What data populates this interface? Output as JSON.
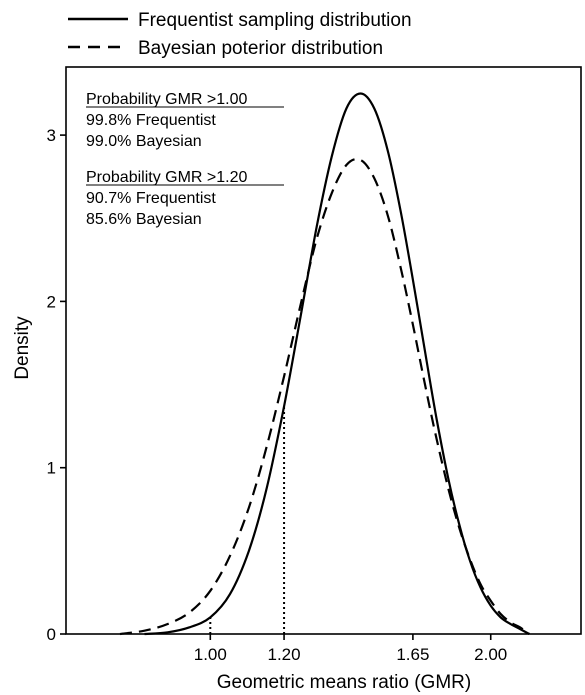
{
  "legend": {
    "items": [
      {
        "label": "Frequentist sampling distribution",
        "dash": "solid"
      },
      {
        "label": "Bayesian poterior distribution",
        "dash": "dashed"
      }
    ]
  },
  "annotations": [
    {
      "heading": "Probability GMR >1.00",
      "lines": [
        "99.8% Frequentist",
        "99.0% Bayesian"
      ]
    },
    {
      "heading": "Probability GMR >1.20",
      "lines": [
        "90.7% Frequentist",
        "85.6% Bayesian"
      ]
    }
  ],
  "chart_data": {
    "type": "line",
    "xlabel": "Geometric means ratio (GMR)",
    "ylabel": "Density",
    "x_scale": "log",
    "xlim": [
      0.7,
      2.5
    ],
    "ylim": [
      0,
      3.3
    ],
    "x_ticks": [
      {
        "value": 1.0,
        "label": "1.00"
      },
      {
        "value": 1.2,
        "label": "1.20"
      },
      {
        "value": 1.65,
        "label": "1.65"
      },
      {
        "value": 2.0,
        "label": "2.00"
      }
    ],
    "y_ticks": [
      {
        "value": 0,
        "label": "0"
      },
      {
        "value": 1,
        "label": "1"
      },
      {
        "value": 2,
        "label": "2"
      },
      {
        "value": 3,
        "label": "3"
      }
    ],
    "reference_lines": [
      {
        "x": 1.0,
        "style": "dotted"
      },
      {
        "x": 1.2,
        "style": "dotted"
      }
    ],
    "series": [
      {
        "name": "Frequentist sampling distribution",
        "style": "solid",
        "x": [
          0.85,
          0.9,
          0.95,
          1.0,
          1.05,
          1.1,
          1.15,
          1.2,
          1.25,
          1.3,
          1.35,
          1.4,
          1.45,
          1.5,
          1.55,
          1.6,
          1.65,
          1.7,
          1.75,
          1.8,
          1.85,
          1.9,
          1.95,
          2.0,
          2.05,
          2.1,
          2.15,
          2.2
        ],
        "y": [
          0.0,
          0.01,
          0.04,
          0.1,
          0.24,
          0.5,
          0.88,
          1.37,
          1.91,
          2.44,
          2.87,
          3.16,
          3.25,
          3.16,
          2.91,
          2.55,
          2.13,
          1.7,
          1.29,
          0.94,
          0.66,
          0.44,
          0.28,
          0.17,
          0.1,
          0.06,
          0.03,
          0.0
        ]
      },
      {
        "name": "Bayesian poterior distribution",
        "style": "dashed",
        "x": [
          0.8,
          0.85,
          0.9,
          0.95,
          1.0,
          1.05,
          1.1,
          1.15,
          1.2,
          1.25,
          1.3,
          1.35,
          1.4,
          1.45,
          1.5,
          1.55,
          1.6,
          1.65,
          1.7,
          1.75,
          1.8,
          1.85,
          1.9,
          1.95,
          2.0,
          2.05,
          2.1,
          2.15,
          2.2
        ],
        "y": [
          0.0,
          0.02,
          0.06,
          0.13,
          0.26,
          0.47,
          0.76,
          1.13,
          1.55,
          1.98,
          2.37,
          2.65,
          2.82,
          2.85,
          2.74,
          2.52,
          2.21,
          1.86,
          1.5,
          1.17,
          0.88,
          0.64,
          0.45,
          0.3,
          0.2,
          0.12,
          0.07,
          0.04,
          0.0
        ]
      }
    ]
  }
}
